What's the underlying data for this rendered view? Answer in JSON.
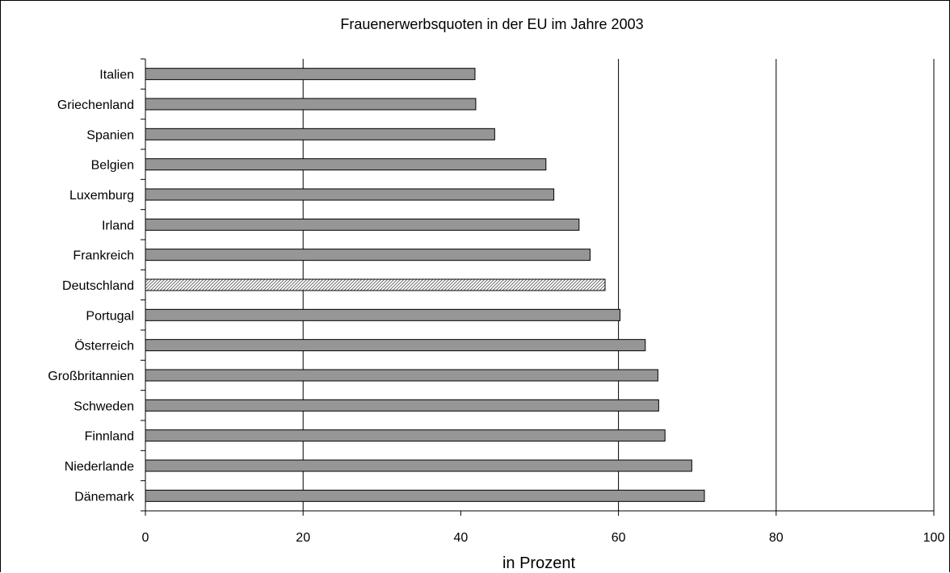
{
  "chart_data": {
    "type": "bar",
    "orientation": "horizontal",
    "title": "Frauenerwerbsquoten in der EU im Jahre 2003",
    "xlabel": "in Prozent",
    "ylabel": "",
    "xlim": [
      0,
      100
    ],
    "x_ticks": [
      0,
      20,
      40,
      60,
      80,
      100
    ],
    "grid": "vertical lines at 20, 60, 80, 100",
    "legend": "none",
    "categories": [
      "Italien",
      "Griechenland",
      "Spanien",
      "Belgien",
      "Luxemburg",
      "Irland",
      "Frankreich",
      "Deutschland",
      "Portugal",
      "Österreich",
      "Großbritannien",
      "Schweden",
      "Finnland",
      "Niederlande",
      "Dänemark"
    ],
    "values": [
      41.8,
      41.9,
      44.3,
      50.8,
      51.8,
      55.0,
      56.4,
      58.3,
      60.2,
      63.4,
      65.0,
      65.1,
      65.9,
      69.3,
      70.9
    ],
    "highlight": "Deutschland",
    "colors": {
      "bar": "#969696",
      "highlight_hatch": "#555555",
      "axis": "#000000"
    }
  }
}
